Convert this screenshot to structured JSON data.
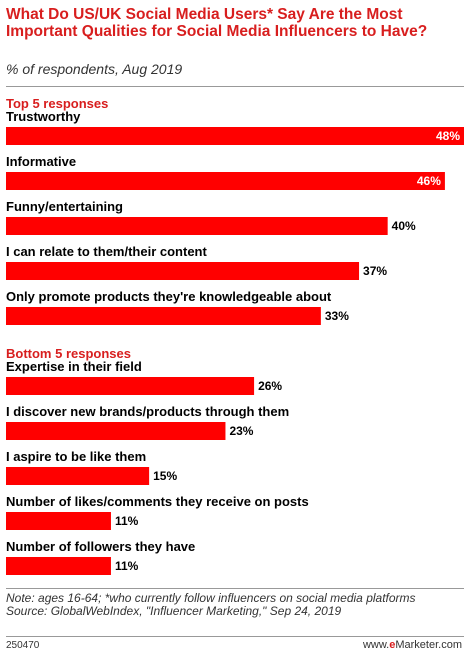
{
  "title": "What Do US/UK Social Media Users* Say Are the Most Important Qualities for Social Media Influencers to Have?",
  "subtitle": "% of respondents, Aug 2019",
  "chart_data": {
    "type": "bar",
    "orientation": "horizontal",
    "unit": "%",
    "xlim": [
      0,
      48
    ],
    "bar_color": "#ff0000",
    "value_color_inside": "#ffffff",
    "value_color_outside": "#000000",
    "groups": [
      {
        "label": "Top 5 responses",
        "label_color": "#d81e1e",
        "categories": [
          "Trustworthy",
          "Informative",
          "Funny/entertaining",
          "I can relate to them/their content",
          "Only promote products they're knowledgeable about"
        ],
        "values": [
          48,
          46,
          40,
          37,
          33
        ]
      },
      {
        "label": "Bottom 5 responses",
        "label_color": "#d81e1e",
        "categories": [
          "Expertise in their field",
          "I discover new brands/products through them",
          "I aspire to be like them",
          "Number of likes/comments they receive on posts",
          "Number of followers they have"
        ],
        "values": [
          26,
          23,
          15,
          11,
          11
        ]
      }
    ]
  },
  "footnote": "Note: ages 16-64; *who currently follow influencers on social media platforms",
  "source": "Source: GlobalWebIndex, \"Influencer Marketing,\" Sep 24, 2019",
  "code": "250470",
  "brand": {
    "prefix": "www.",
    "e": "e",
    "suffix": "Marketer.com"
  }
}
